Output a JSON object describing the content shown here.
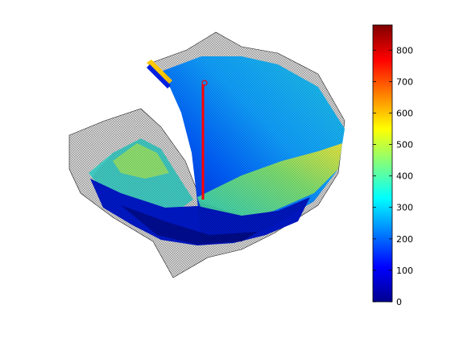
{
  "chart_data": {
    "type": "heatmap",
    "title": "",
    "xlabel": "",
    "ylabel": "",
    "colorbar": {
      "colormap": "jet",
      "range": [
        0,
        880
      ],
      "ticks": [
        0,
        100,
        200,
        300,
        400,
        500,
        600,
        700,
        800
      ]
    },
    "surface": {
      "style": "3d mesh surface, black wireframe edges, colored by depth",
      "marker_line_color": "#ff0000"
    }
  }
}
